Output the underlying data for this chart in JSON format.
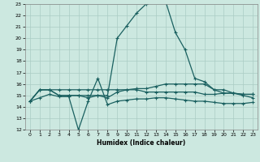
{
  "xlabel": "Humidex (Indice chaleur)",
  "xlim": [
    -0.5,
    23.5
  ],
  "ylim": [
    12,
    23
  ],
  "yticks": [
    12,
    13,
    14,
    15,
    16,
    17,
    18,
    19,
    20,
    21,
    22,
    23
  ],
  "xticks": [
    0,
    1,
    2,
    3,
    4,
    5,
    6,
    7,
    8,
    9,
    10,
    11,
    12,
    13,
    14,
    15,
    16,
    17,
    18,
    19,
    20,
    21,
    22,
    23
  ],
  "bg_color": "#cce8e0",
  "grid_color": "#aaccc4",
  "line_color": "#1a6060",
  "line1_x": [
    0,
    1,
    2,
    3,
    4,
    5,
    6,
    7,
    8,
    9,
    10,
    11,
    12,
    13,
    14,
    15,
    16,
    17,
    18,
    19,
    20,
    21,
    22,
    23
  ],
  "line1_y": [
    14.5,
    15.5,
    15.5,
    15.5,
    15.5,
    15.5,
    15.5,
    15.5,
    15.5,
    15.5,
    15.5,
    15.6,
    15.6,
    15.8,
    16.0,
    16.0,
    16.0,
    16.0,
    16.0,
    15.5,
    15.2,
    15.2,
    15.1,
    15.1
  ],
  "line2_x": [
    0,
    1,
    2,
    3,
    4,
    5,
    6,
    7,
    8,
    9,
    10,
    11,
    12,
    13,
    14,
    15,
    16,
    17,
    18,
    19,
    20,
    21,
    22,
    23
  ],
  "line2_y": [
    14.5,
    15.5,
    15.5,
    15.0,
    15.0,
    15.0,
    14.8,
    15.0,
    14.8,
    15.3,
    15.5,
    15.5,
    15.3,
    15.3,
    15.3,
    15.3,
    15.3,
    15.3,
    15.1,
    15.1,
    15.2,
    15.2,
    15.1,
    15.1
  ],
  "line3_x": [
    0,
    1,
    2,
    3,
    4,
    5,
    6,
    7,
    8,
    9,
    10,
    11,
    12,
    13,
    14,
    15,
    16,
    17,
    18,
    19,
    20,
    21,
    22,
    23
  ],
  "line3_y": [
    14.5,
    14.8,
    15.1,
    14.9,
    14.9,
    12.0,
    14.5,
    16.5,
    14.2,
    14.5,
    14.6,
    14.7,
    14.7,
    14.8,
    14.8,
    14.7,
    14.6,
    14.5,
    14.5,
    14.4,
    14.3,
    14.3,
    14.3,
    14.4
  ],
  "line4_x": [
    0,
    1,
    2,
    3,
    4,
    5,
    6,
    7,
    8,
    9,
    10,
    11,
    12,
    13,
    14,
    15,
    16,
    17,
    18,
    19,
    20,
    21,
    22,
    23
  ],
  "line4_y": [
    14.5,
    15.5,
    15.5,
    15.0,
    15.0,
    15.0,
    15.0,
    15.0,
    15.0,
    20.0,
    21.1,
    22.2,
    23.0,
    23.2,
    23.2,
    20.5,
    19.0,
    16.5,
    16.2,
    15.5,
    15.5,
    15.2,
    15.0,
    14.8
  ]
}
